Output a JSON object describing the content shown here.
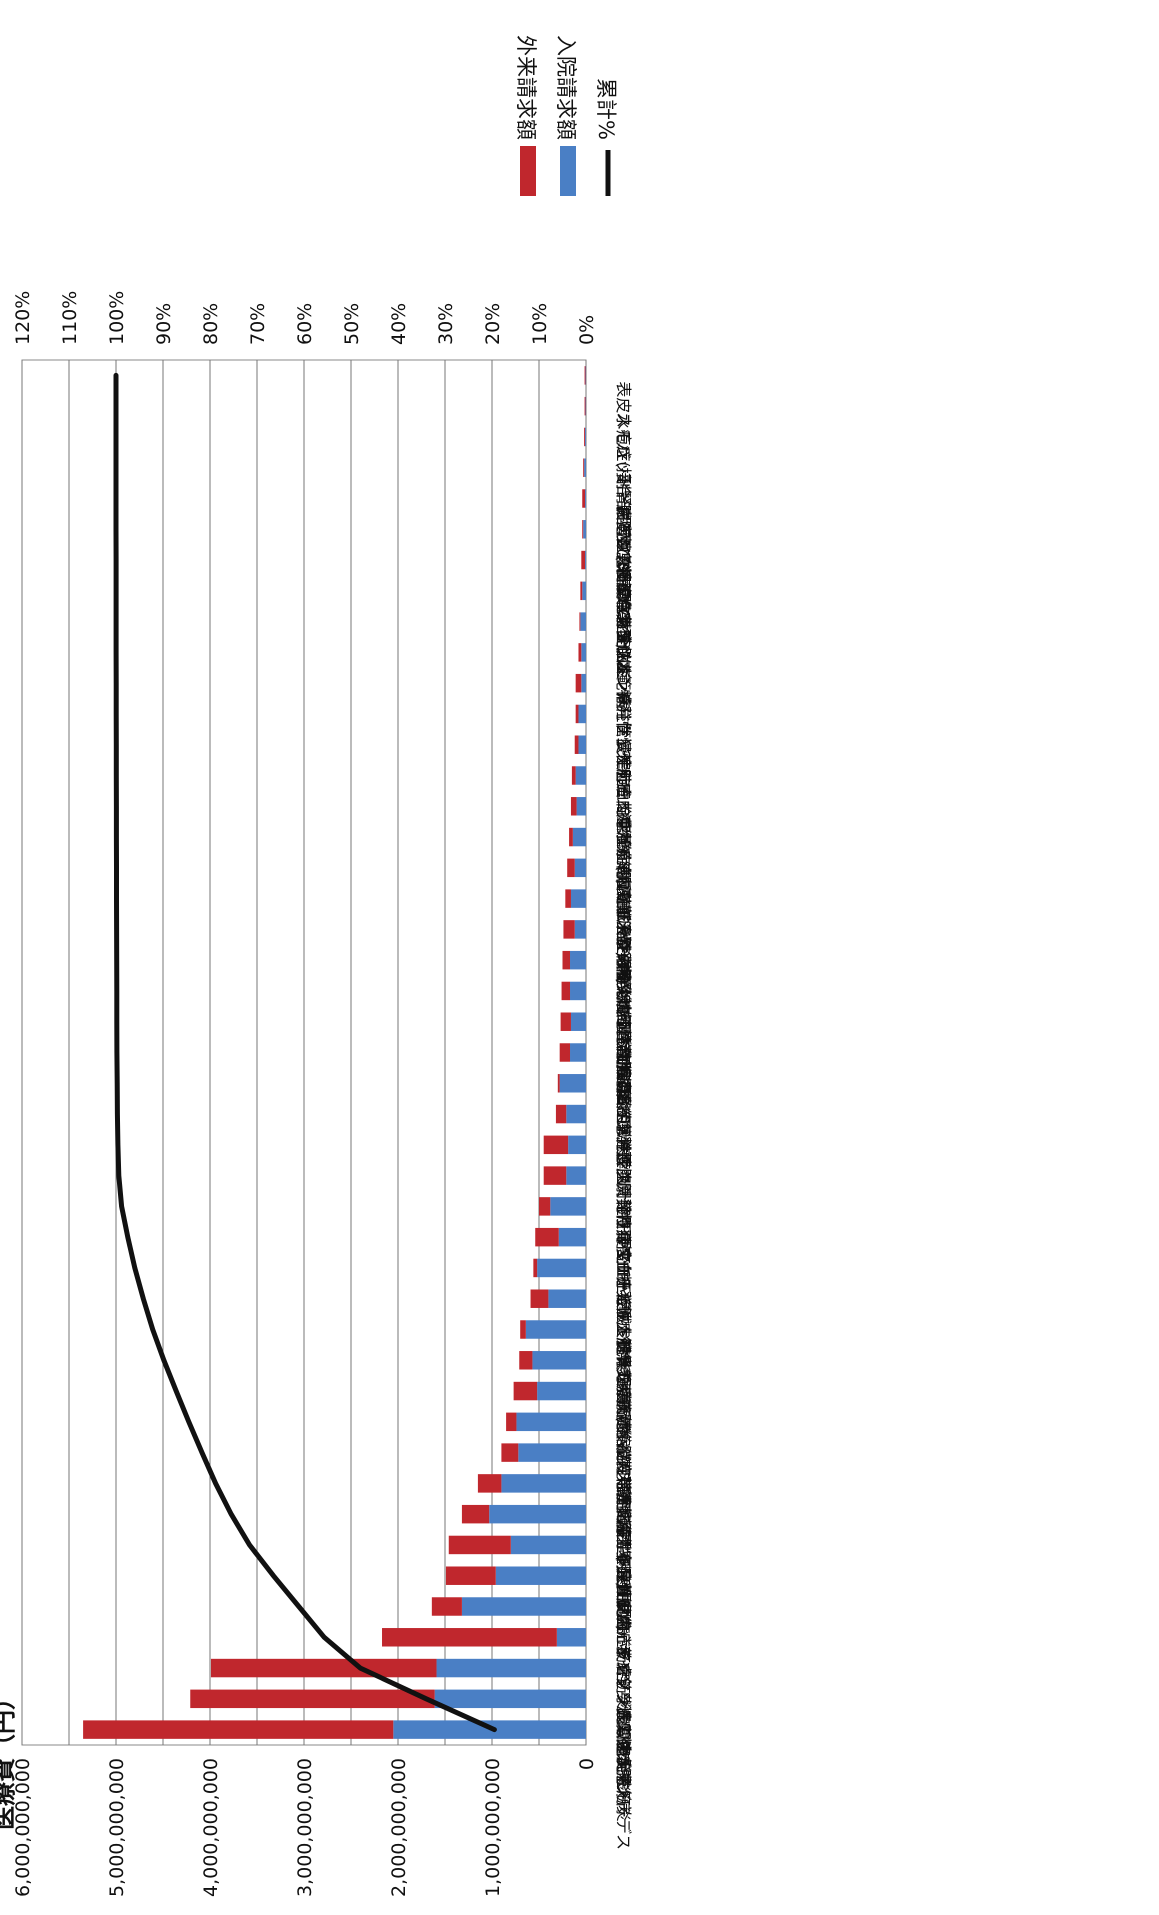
{
  "chart_data": {
    "type": "bar",
    "stacked": true,
    "orientation": "rotated-90-clockwise",
    "ylabel": "医療費（円）",
    "y_left_ticks": [
      "0",
      "1,000,000,000",
      "2,000,000,000",
      "3,000,000,000",
      "4,000,000,000",
      "5,000,000,000",
      "6,000,000,000"
    ],
    "y_right_ticks": [
      "0%",
      "10%",
      "20%",
      "30%",
      "40%",
      "50%",
      "60%",
      "70%",
      "80%",
      "90%",
      "100%",
      "110%",
      "120%"
    ],
    "ylim_left": [
      0,
      6000000000
    ],
    "ylim_right": [
      0,
      120
    ],
    "grid": true,
    "legend_position": "top-right",
    "categories": [
      "クローン病",
      "潰瘍性大腸炎",
      "全身性エリテマトーデス",
      "ライソゾーム病",
      "パーキンソン病関連疾患",
      "強皮症／皮膚筋炎及び多発性筋炎",
      "多発性硬化症",
      "再生不良性貧血",
      "筋萎縮性側索硬化症",
      "特発性拡張型(うっ血型)心筋症",
      "後縦靭帯骨化症",
      "脊髄小脳変性症",
      "多系統萎縮症",
      "モヤモヤ病(ウィリス動脈輪閉塞症)",
      "重症筋無力症",
      "特発性大腿骨頭壊死症",
      "ベーチェット病",
      "特発性血小板減少性紫斑病",
      "原発性肺高血圧症",
      "悪性関節リウマチ",
      "原発性胆汁性肝硬変",
      "重症急性膵炎",
      "サルコイドーシス",
      "混合性結合組織病",
      "結節性動脈周囲炎",
      "特発性間質性肺炎",
      "原発性免疫不全症候群",
      "難治性の肝炎のうち劇症肝炎",
      "大動脈炎症候群",
      "アミロイドーシス",
      "神経線維腫症Ｉ型／神経線維腫症ＩＩ型",
      "ビュルガー病(バージャー病)",
      "天疱瘡",
      "ウェゲナー肉芽腫症",
      "特発性慢性肺血栓塞栓症(肺高血圧型)",
      "広範脊柱管狭窄症",
      "ブリオン病",
      "ハンチントン病",
      "網膜色素変性症",
      "亜急性硬化性全脳炎",
      "膿疱性乾癬",
      "副腎白質ジストロフィー",
      "バッド・キアリ(Budd-Chiari...",
      "スモン",
      "表皮水疱症(接合部型及び栄養障害型)"
    ],
    "series": [
      {
        "name": "外来請求額",
        "color": "#c0272d",
        "values": [
          3300000000,
          2600000000,
          2400000000,
          1860000000,
          320000000,
          530000000,
          660000000,
          290000000,
          250000000,
          180000000,
          110000000,
          250000000,
          140000000,
          60000000,
          190000000,
          40000000,
          250000000,
          120000000,
          240000000,
          260000000,
          110000000,
          20000000,
          110000000,
          110000000,
          90000000,
          80000000,
          120000000,
          60000000,
          80000000,
          40000000,
          60000000,
          40000000,
          40000000,
          30000000,
          60000000,
          30000000,
          10000000,
          20000000,
          40000000,
          10000000,
          30000000,
          10000000,
          10000000,
          10000000,
          10000000
        ]
      },
      {
        "name": "入院請求額",
        "color": "#4a7fc5",
        "values": [
          2050000000,
          1610000000,
          1590000000,
          310000000,
          1320000000,
          960000000,
          800000000,
          1030000000,
          900000000,
          720000000,
          740000000,
          520000000,
          570000000,
          640000000,
          400000000,
          520000000,
          290000000,
          380000000,
          210000000,
          190000000,
          210000000,
          280000000,
          170000000,
          160000000,
          170000000,
          170000000,
          120000000,
          160000000,
          120000000,
          140000000,
          100000000,
          110000000,
          80000000,
          80000000,
          50000000,
          50000000,
          60000000,
          40000000,
          10000000,
          30000000,
          10000000,
          20000000,
          10000000,
          5000000,
          5000000
        ]
      },
      {
        "name": "累計%",
        "color": "#111111",
        "type": "line",
        "axis": "right",
        "values": [
          19.5,
          34.0,
          48.0,
          55.7,
          61.1,
          66.5,
          71.6,
          75.5,
          78.8,
          81.7,
          84.5,
          87.2,
          89.8,
          92.2,
          94.2,
          96.0,
          97.5,
          98.8,
          99.4,
          99.6,
          99.7,
          99.75,
          99.8,
          99.82,
          99.84,
          99.86,
          99.88,
          99.89,
          99.9,
          99.91,
          99.92,
          99.93,
          99.94,
          99.95,
          99.96,
          99.97,
          99.97,
          99.98,
          99.98,
          99.99,
          99.99,
          99.99,
          99.995,
          99.998,
          100.0
        ]
      }
    ]
  }
}
